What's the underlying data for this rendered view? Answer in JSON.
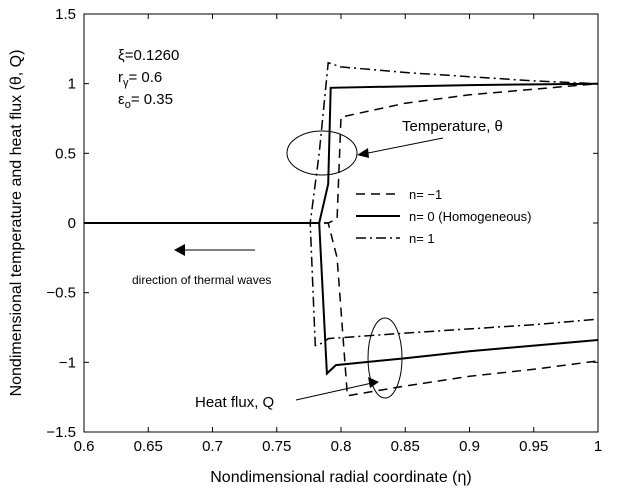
{
  "chart_data": {
    "type": "line",
    "title": "",
    "xlabel": "Nondimensional radial coordinate (η)",
    "ylabel": "Nondimensional temperature and heat flux (θ, Q)",
    "xlim": [
      0.6,
      1.0
    ],
    "ylim": [
      -1.5,
      1.5
    ],
    "xticks": [
      0.6,
      0.65,
      0.7,
      0.75,
      0.8,
      0.85,
      0.9,
      0.95,
      1.0
    ],
    "xtick_labels": [
      "0.6",
      "0.65",
      "0.7",
      "0.75",
      "0.8",
      "0.85",
      "0.9",
      "0.95",
      "1"
    ],
    "yticks": [
      -1.5,
      -1,
      -0.5,
      0,
      0.5,
      1,
      1.5
    ],
    "ytick_labels": [
      "−1.5",
      "−1",
      "−0.5",
      "0",
      "0.5",
      "1",
      "1.5"
    ],
    "grid": false,
    "legend_position": "center-right",
    "series": [
      {
        "name": "n= −1",
        "style": "dashed",
        "temperature": {
          "x": [
            0.6,
            0.783,
            0.79,
            0.797,
            0.8,
            0.85,
            0.9,
            0.95,
            1.0
          ],
          "y": [
            0,
            0,
            0,
            0.03,
            0.76,
            0.86,
            0.92,
            0.96,
            1.0
          ]
        },
        "heat_flux": {
          "x": [
            0.6,
            0.783,
            0.79,
            0.797,
            0.805,
            0.85,
            0.9,
            0.95,
            1.0
          ],
          "y": [
            0,
            0,
            0,
            -0.25,
            -1.24,
            -1.17,
            -1.1,
            -1.05,
            -0.99
          ]
        }
      },
      {
        "name": "n= 0 (Homogeneous)",
        "style": "solid",
        "temperature": {
          "x": [
            0.6,
            0.783,
            0.79,
            0.792,
            0.9,
            1.0
          ],
          "y": [
            0,
            0,
            0.28,
            0.97,
            0.99,
            1.0
          ]
        },
        "heat_flux": {
          "x": [
            0.6,
            0.783,
            0.789,
            0.796,
            0.85,
            0.9,
            0.95,
            1.0
          ],
          "y": [
            0,
            0,
            -1.08,
            -1.02,
            -0.97,
            -0.92,
            -0.88,
            -0.84
          ]
        }
      },
      {
        "name": "n= 1",
        "style": "dashdot",
        "temperature": {
          "x": [
            0.6,
            0.776,
            0.783,
            0.79,
            0.8,
            0.85,
            0.9,
            0.95,
            1.0
          ],
          "y": [
            0,
            0,
            0.5,
            1.15,
            1.12,
            1.08,
            1.05,
            1.02,
            1.0
          ]
        },
        "heat_flux": {
          "x": [
            0.6,
            0.776,
            0.78,
            0.786,
            0.79,
            0.85,
            0.9,
            0.95,
            1.0
          ],
          "y": [
            0,
            0,
            -0.88,
            -0.86,
            -0.83,
            -0.79,
            -0.76,
            -0.73,
            -0.69
          ]
        }
      }
    ],
    "annotations": {
      "xi": "ξ=0.1260",
      "r_gamma": "r",
      "r_gamma_sub": "γ",
      "r_gamma_val": "= 0.6",
      "eps": "ε",
      "eps_sub": "o",
      "eps_val": "= 0.35",
      "temperature": "Temperature, θ",
      "heat_flux": "Heat flux, Q",
      "direction": "direction of thermal waves"
    }
  }
}
